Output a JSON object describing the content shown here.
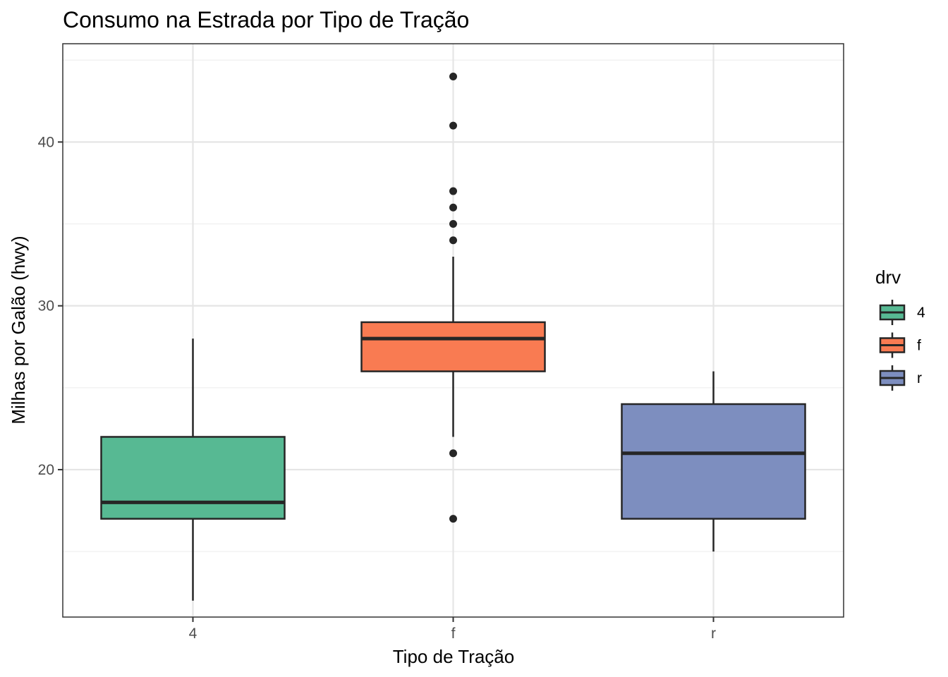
{
  "chart_data": {
    "type": "boxplot",
    "title": "Consumo na Estrada por Tipo de Tração",
    "xlabel": "Tipo de Tração",
    "ylabel": "Milhas por Galão (hwy)",
    "categories": [
      "4",
      "f",
      "r"
    ],
    "ylim": [
      11,
      46
    ],
    "yticks": [
      20,
      30,
      40
    ],
    "ytick_labels": [
      "20",
      "30",
      "40"
    ],
    "grid": true,
    "legend": {
      "title": "drv",
      "placement": "right",
      "entries": [
        "4",
        "f",
        "r"
      ]
    },
    "colors": {
      "4": "#57b993",
      "f": "#f97b52",
      "r": "#7d8ebf",
      "outline": "#262626",
      "grid_major": "#e5e5e5",
      "grid_minor": "#efefef"
    },
    "boxes": [
      {
        "category": "4",
        "whisker_low": 12,
        "q1": 17,
        "median": 18,
        "q3": 22,
        "whisker_high": 28,
        "outliers": []
      },
      {
        "category": "f",
        "whisker_low": 22,
        "q1": 26,
        "median": 28,
        "q3": 29,
        "whisker_high": 33,
        "outliers": [
          44,
          41,
          37,
          36,
          35,
          34,
          21,
          17
        ]
      },
      {
        "category": "r",
        "whisker_low": 15,
        "q1": 17,
        "median": 21,
        "q3": 24,
        "whisker_high": 26,
        "outliers": []
      }
    ]
  }
}
